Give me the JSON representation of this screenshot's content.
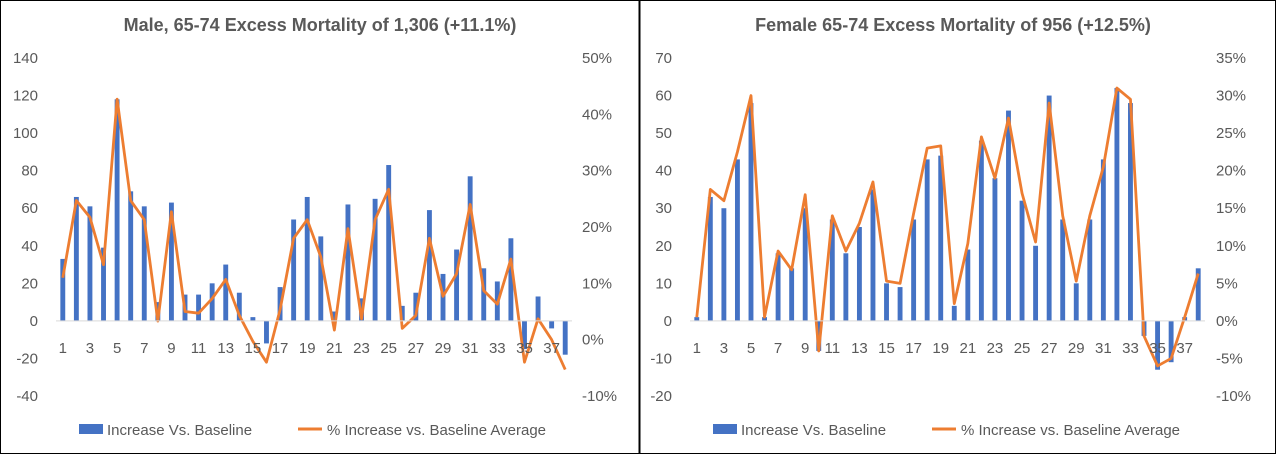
{
  "colors": {
    "bar": "#4472C4",
    "line": "#ED7D31",
    "axis_text": "#595959",
    "title_text": "#595959",
    "panel_border": "#000000"
  },
  "chart_data": [
    {
      "type": "bar",
      "title": "Male, 65-74 Excess Mortality  of 1,306 (+11.1%)",
      "ylim": [
        -40,
        140
      ],
      "y_ticks": [
        "140",
        "120",
        "100",
        "80",
        "60",
        "40",
        "20",
        "0",
        "-20",
        "-40"
      ],
      "y2lim": [
        -10,
        50
      ],
      "y2_ticks": [
        "50%",
        "40%",
        "30%",
        "20%",
        "10%",
        "0%",
        "-10%"
      ],
      "x_tick_labels": [
        "1",
        "3",
        "5",
        "7",
        "9",
        "11",
        "13",
        "15",
        "17",
        "19",
        "21",
        "23",
        "25",
        "27",
        "29",
        "31",
        "33",
        "35",
        "37"
      ],
      "grid": false,
      "legend_position": "bottom",
      "series": [
        {
          "name": "Increase Vs. Baseline",
          "type": "bar",
          "axis": "left",
          "x": [
            1,
            2,
            3,
            4,
            5,
            6,
            7,
            8,
            9,
            10,
            11,
            12,
            13,
            14,
            15,
            16,
            17,
            18,
            19,
            20,
            21,
            22,
            23,
            24,
            25,
            26,
            27,
            28,
            29,
            30,
            31,
            32,
            33,
            34,
            35,
            36,
            37,
            38
          ],
          "values": [
            33,
            66,
            61,
            39,
            118,
            69,
            61,
            10,
            63,
            14,
            14,
            20,
            30,
            15,
            2,
            -12,
            18,
            54,
            66,
            45,
            5,
            62,
            12,
            65,
            83,
            8,
            15,
            59,
            25,
            38,
            77,
            28,
            21,
            44,
            -15,
            13,
            -4,
            -18
          ]
        },
        {
          "name": "% Increase vs. Baseline Average",
          "type": "line",
          "axis": "right",
          "x": [
            1,
            2,
            3,
            4,
            5,
            6,
            7,
            8,
            9,
            10,
            11,
            12,
            13,
            14,
            15,
            16,
            17,
            18,
            19,
            20,
            21,
            22,
            23,
            24,
            25,
            26,
            27,
            28,
            29,
            30,
            31,
            32,
            33,
            34,
            35,
            36,
            37,
            38
          ],
          "values": [
            11,
            24.7,
            21.7,
            13.3,
            42.7,
            24.7,
            21.3,
            3.3,
            22.7,
            5,
            4.7,
            7.3,
            10.7,
            4.3,
            -0.3,
            -4,
            5.3,
            18,
            21.3,
            14.7,
            1.7,
            19.7,
            3.7,
            21.3,
            26.7,
            2,
            4.3,
            18,
            7.7,
            11.7,
            24,
            8.7,
            6.3,
            14.3,
            -4,
            3.7,
            0,
            -5.3
          ]
        }
      ]
    },
    {
      "type": "bar",
      "title": "Female 65-74 Excess Mortality of 956 (+12.5%)",
      "ylim": [
        -20,
        70
      ],
      "y_ticks": [
        "70",
        "60",
        "50",
        "40",
        "30",
        "20",
        "10",
        "0",
        "-10",
        "-20"
      ],
      "y2lim": [
        -10,
        35
      ],
      "y2_ticks": [
        "35%",
        "30%",
        "25%",
        "20%",
        "15%",
        "10%",
        "5%",
        "0%",
        "-5%",
        "-10%"
      ],
      "x_tick_labels": [
        "1",
        "3",
        "5",
        "7",
        "9",
        "11",
        "13",
        "15",
        "17",
        "19",
        "21",
        "23",
        "25",
        "27",
        "29",
        "31",
        "33",
        "35",
        "37"
      ],
      "grid": false,
      "legend_position": "bottom",
      "series": [
        {
          "name": "Increase Vs. Baseline",
          "type": "bar",
          "axis": "left",
          "x": [
            1,
            2,
            3,
            4,
            5,
            6,
            7,
            8,
            9,
            10,
            11,
            12,
            13,
            14,
            15,
            16,
            17,
            18,
            19,
            20,
            21,
            22,
            23,
            24,
            25,
            26,
            27,
            28,
            29,
            30,
            31,
            32,
            33,
            34,
            35,
            36,
            37,
            38
          ],
          "values": [
            1,
            33,
            30,
            43,
            58,
            1,
            18,
            14,
            30,
            -8,
            27,
            18,
            25,
            35,
            10,
            9,
            27,
            43,
            44,
            4,
            19,
            48,
            38,
            56,
            32,
            20,
            60,
            27,
            10,
            27,
            43,
            62,
            58,
            -4,
            -13,
            -11,
            1,
            14
          ]
        },
        {
          "name": "% Increase vs. Baseline Average",
          "type": "line",
          "axis": "right",
          "x": [
            1,
            2,
            3,
            4,
            5,
            6,
            7,
            8,
            9,
            10,
            11,
            12,
            13,
            14,
            15,
            16,
            17,
            18,
            19,
            20,
            21,
            22,
            23,
            24,
            25,
            26,
            27,
            28,
            29,
            30,
            31,
            32,
            33,
            34,
            35,
            36,
            37,
            38
          ],
          "values": [
            0.5,
            17.5,
            16,
            22.5,
            30,
            0.5,
            9.3,
            6.8,
            16.8,
            -4,
            14,
            9.3,
            13,
            18.5,
            5.3,
            5,
            14.3,
            23,
            23.3,
            2.3,
            10.3,
            24.5,
            19,
            27,
            17,
            10.5,
            29,
            14,
            5.3,
            14,
            20.5,
            31,
            29.5,
            -2,
            -6,
            -5,
            0.5,
            6.3
          ]
        }
      ]
    }
  ]
}
